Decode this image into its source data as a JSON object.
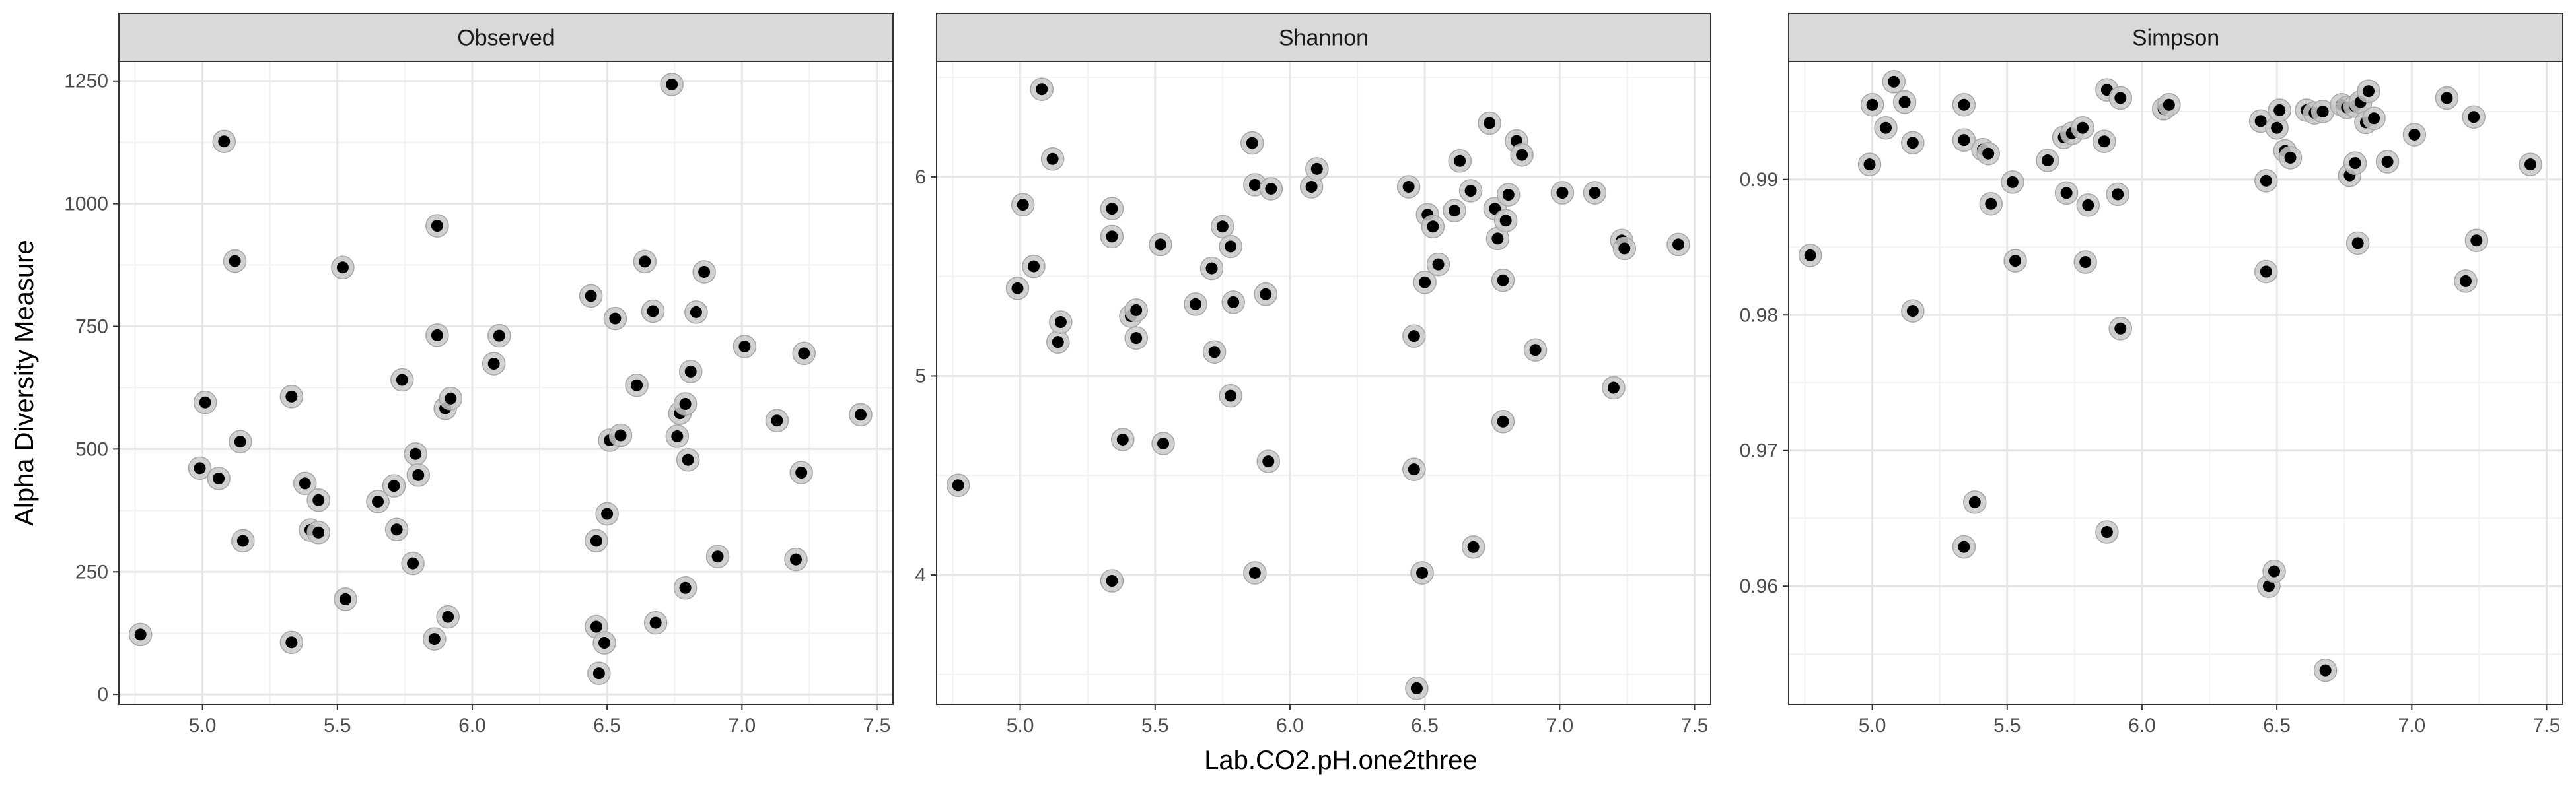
{
  "chart_data": {
    "type": "scatter",
    "xlabel": "Lab.CO2.pH.one2three",
    "ylabel": "Alpha Diversity Measure",
    "xlim": [
      4.69,
      7.56
    ],
    "x_ticks": [
      5.0,
      5.5,
      6.0,
      6.5,
      7.0,
      7.5
    ],
    "x_tick_labels": [
      "5.0",
      "5.5",
      "6.0",
      "6.5",
      "7.0",
      "7.5"
    ],
    "grid": true,
    "colors": {
      "point": "#000000",
      "halo": "#c8c8c8",
      "strip": "#d9d9d9",
      "grid_major": "#e6e6e6",
      "grid_minor": "#f2f2f2",
      "border": "#333333"
    },
    "panels": [
      {
        "name": "Observed",
        "ylim": [
          -20,
          1290
        ],
        "y_ticks": [
          0,
          250,
          500,
          750,
          1000,
          1250
        ],
        "y_tick_labels": [
          "0",
          "250",
          "500",
          "750",
          "1000",
          "1250"
        ],
        "points": [
          [
            4.77,
            122
          ],
          [
            4.99,
            461
          ],
          [
            5.01,
            595
          ],
          [
            5.06,
            440
          ],
          [
            5.08,
            1127
          ],
          [
            5.12,
            883
          ],
          [
            5.14,
            515
          ],
          [
            5.15,
            313
          ],
          [
            5.33,
            106
          ],
          [
            5.33,
            607
          ],
          [
            5.38,
            430
          ],
          [
            5.4,
            335
          ],
          [
            5.43,
            330
          ],
          [
            5.43,
            396
          ],
          [
            5.52,
            870
          ],
          [
            5.53,
            194
          ],
          [
            5.65,
            393
          ],
          [
            5.71,
            425
          ],
          [
            5.72,
            336
          ],
          [
            5.74,
            641
          ],
          [
            5.78,
            267
          ],
          [
            5.79,
            490
          ],
          [
            5.8,
            447
          ],
          [
            5.86,
            113
          ],
          [
            5.87,
            732
          ],
          [
            5.87,
            955
          ],
          [
            5.9,
            583
          ],
          [
            5.91,
            158
          ],
          [
            5.92,
            603
          ],
          [
            6.08,
            674
          ],
          [
            6.1,
            731
          ],
          [
            6.44,
            812
          ],
          [
            6.46,
            313
          ],
          [
            6.46,
            138
          ],
          [
            6.47,
            43
          ],
          [
            6.49,
            105
          ],
          [
            6.5,
            368
          ],
          [
            6.51,
            518
          ],
          [
            6.53,
            766
          ],
          [
            6.55,
            528
          ],
          [
            6.61,
            630
          ],
          [
            6.64,
            882
          ],
          [
            6.67,
            781
          ],
          [
            6.68,
            146
          ],
          [
            6.74,
            1243
          ],
          [
            6.76,
            526
          ],
          [
            6.77,
            573
          ],
          [
            6.79,
            592
          ],
          [
            6.79,
            217
          ],
          [
            6.8,
            478
          ],
          [
            6.81,
            658
          ],
          [
            6.83,
            779
          ],
          [
            6.86,
            861
          ],
          [
            6.91,
            281
          ],
          [
            7.01,
            709
          ],
          [
            7.13,
            558
          ],
          [
            7.2,
            275
          ],
          [
            7.22,
            452
          ],
          [
            7.23,
            695
          ],
          [
            7.44,
            570
          ]
        ]
      },
      {
        "name": "Shannon",
        "ylim": [
          3.35,
          6.58
        ],
        "y_ticks": [
          4,
          5,
          6
        ],
        "y_tick_labels": [
          "4",
          "5",
          "6"
        ],
        "points": [
          [
            4.77,
            4.45
          ],
          [
            4.99,
            5.44
          ],
          [
            5.01,
            5.86
          ],
          [
            5.05,
            5.55
          ],
          [
            5.08,
            6.44
          ],
          [
            5.12,
            6.09
          ],
          [
            5.14,
            5.17
          ],
          [
            5.15,
            5.27
          ],
          [
            5.34,
            5.84
          ],
          [
            5.34,
            5.7
          ],
          [
            5.34,
            3.97
          ],
          [
            5.38,
            4.68
          ],
          [
            5.41,
            5.3
          ],
          [
            5.43,
            5.33
          ],
          [
            5.43,
            5.19
          ],
          [
            5.52,
            5.66
          ],
          [
            5.53,
            4.66
          ],
          [
            5.65,
            5.36
          ],
          [
            5.71,
            5.54
          ],
          [
            5.72,
            5.12
          ],
          [
            5.75,
            5.75
          ],
          [
            5.78,
            5.65
          ],
          [
            5.78,
            4.9
          ],
          [
            5.79,
            5.37
          ],
          [
            5.86,
            6.17
          ],
          [
            5.87,
            5.96
          ],
          [
            5.87,
            4.01
          ],
          [
            5.91,
            5.41
          ],
          [
            5.92,
            4.57
          ],
          [
            5.93,
            5.94
          ],
          [
            6.08,
            5.95
          ],
          [
            6.1,
            6.04
          ],
          [
            6.44,
            5.95
          ],
          [
            6.46,
            4.53
          ],
          [
            6.46,
            5.2
          ],
          [
            6.47,
            3.43
          ],
          [
            6.49,
            4.01
          ],
          [
            6.5,
            5.47
          ],
          [
            6.51,
            5.81
          ],
          [
            6.53,
            5.75
          ],
          [
            6.55,
            5.56
          ],
          [
            6.61,
            5.83
          ],
          [
            6.63,
            6.08
          ],
          [
            6.67,
            5.93
          ],
          [
            6.68,
            4.14
          ],
          [
            6.74,
            6.27
          ],
          [
            6.76,
            5.84
          ],
          [
            6.77,
            5.69
          ],
          [
            6.79,
            5.48
          ],
          [
            6.79,
            4.77
          ],
          [
            6.8,
            5.78
          ],
          [
            6.81,
            5.91
          ],
          [
            6.84,
            6.18
          ],
          [
            6.86,
            6.11
          ],
          [
            6.91,
            5.13
          ],
          [
            7.01,
            5.92
          ],
          [
            7.13,
            5.92
          ],
          [
            7.2,
            4.94
          ],
          [
            7.23,
            5.68
          ],
          [
            7.24,
            5.64
          ],
          [
            7.44,
            5.66
          ]
        ]
      },
      {
        "name": "Simpson",
        "ylim": [
          0.9513,
          0.9987
        ],
        "y_ticks": [
          0.96,
          0.97,
          0.98,
          0.99
        ],
        "y_tick_labels": [
          "0.96",
          "0.97",
          "0.98",
          "0.99"
        ],
        "points": [
          [
            4.77,
            0.9844
          ],
          [
            4.99,
            0.9911
          ],
          [
            5.0,
            0.9955
          ],
          [
            5.05,
            0.9938
          ],
          [
            5.08,
            0.9972
          ],
          [
            5.12,
            0.9957
          ],
          [
            5.15,
            0.9803
          ],
          [
            5.15,
            0.9927
          ],
          [
            5.34,
            0.9955
          ],
          [
            5.34,
            0.9929
          ],
          [
            5.34,
            0.9629
          ],
          [
            5.38,
            0.9662
          ],
          [
            5.41,
            0.9922
          ],
          [
            5.43,
            0.9919
          ],
          [
            5.44,
            0.9882
          ],
          [
            5.52,
            0.9898
          ],
          [
            5.53,
            0.984
          ],
          [
            5.65,
            0.9914
          ],
          [
            5.71,
            0.9931
          ],
          [
            5.72,
            0.989
          ],
          [
            5.74,
            0.9934
          ],
          [
            5.78,
            0.9938
          ],
          [
            5.79,
            0.9839
          ],
          [
            5.8,
            0.9881
          ],
          [
            5.86,
            0.9928
          ],
          [
            5.87,
            0.9966
          ],
          [
            5.87,
            0.964
          ],
          [
            5.91,
            0.9889
          ],
          [
            5.92,
            0.996
          ],
          [
            5.92,
            0.979
          ],
          [
            6.08,
            0.9952
          ],
          [
            6.1,
            0.9955
          ],
          [
            6.44,
            0.9943
          ],
          [
            6.46,
            0.9899
          ],
          [
            6.46,
            0.9832
          ],
          [
            6.47,
            0.96
          ],
          [
            6.49,
            0.9611
          ],
          [
            6.5,
            0.9938
          ],
          [
            6.51,
            0.9951
          ],
          [
            6.53,
            0.9921
          ],
          [
            6.55,
            0.9916
          ],
          [
            6.61,
            0.9951
          ],
          [
            6.64,
            0.9949
          ],
          [
            6.67,
            0.995
          ],
          [
            6.68,
            0.9538
          ],
          [
            6.74,
            0.9955
          ],
          [
            6.76,
            0.9953
          ],
          [
            6.77,
            0.9903
          ],
          [
            6.79,
            0.9954
          ],
          [
            6.79,
            0.9912
          ],
          [
            6.8,
            0.9853
          ],
          [
            6.81,
            0.9957
          ],
          [
            6.83,
            0.9942
          ],
          [
            6.84,
            0.9965
          ],
          [
            6.86,
            0.9945
          ],
          [
            6.91,
            0.9913
          ],
          [
            7.01,
            0.9933
          ],
          [
            7.13,
            0.996
          ],
          [
            7.2,
            0.9825
          ],
          [
            7.23,
            0.9946
          ],
          [
            7.24,
            0.9855
          ],
          [
            7.44,
            0.9911
          ]
        ]
      }
    ]
  }
}
